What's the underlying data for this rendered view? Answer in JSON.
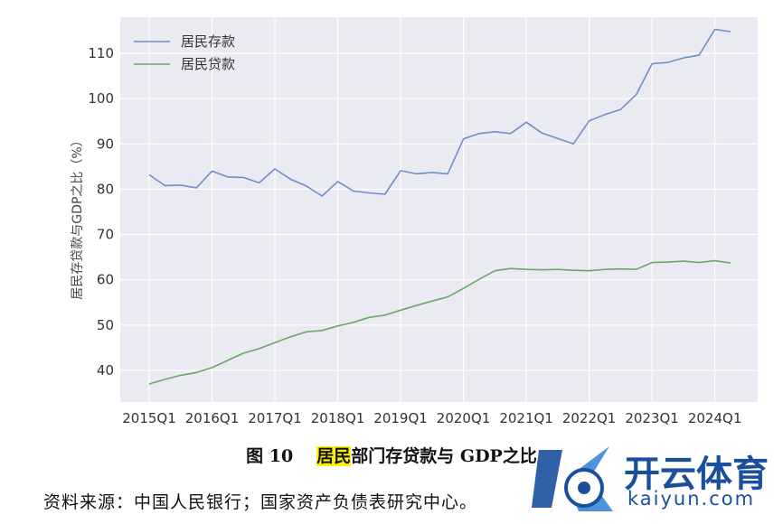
{
  "chart_data": {
    "type": "line",
    "ylabel": "居民存贷款与GDP之比（%）",
    "xlabel": "",
    "title": "",
    "ylim": [
      33,
      118
    ],
    "yticks": [
      40,
      50,
      60,
      70,
      80,
      90,
      100,
      110
    ],
    "grid": true,
    "legend_position": "top-left",
    "x_tick_labels": [
      "2015Q1",
      "2016Q1",
      "2017Q1",
      "2018Q1",
      "2019Q1",
      "2020Q1",
      "2021Q1",
      "2022Q1",
      "2023Q1",
      "2024Q1"
    ],
    "x": [
      "2015Q1",
      "2015Q2",
      "2015Q3",
      "2015Q4",
      "2016Q1",
      "2016Q2",
      "2016Q3",
      "2016Q4",
      "2017Q1",
      "2017Q2",
      "2017Q3",
      "2017Q4",
      "2018Q1",
      "2018Q2",
      "2018Q3",
      "2018Q4",
      "2019Q1",
      "2019Q2",
      "2019Q3",
      "2019Q4",
      "2020Q1",
      "2020Q2",
      "2020Q3",
      "2020Q4",
      "2021Q1",
      "2021Q2",
      "2021Q3",
      "2021Q4",
      "2022Q1",
      "2022Q2",
      "2022Q3",
      "2022Q4",
      "2023Q1",
      "2023Q2",
      "2023Q3",
      "2023Q4",
      "2024Q1",
      "2024Q2"
    ],
    "series": [
      {
        "name": "居民存款",
        "color": "#6f8fc9",
        "values": [
          83.2,
          80.8,
          80.9,
          80.3,
          84.0,
          82.7,
          82.6,
          81.4,
          84.5,
          82.2,
          80.7,
          78.5,
          81.7,
          79.6,
          79.2,
          78.9,
          84.1,
          83.4,
          83.7,
          83.4,
          91.1,
          92.3,
          92.7,
          92.3,
          94.8,
          92.4,
          91.2,
          90.0,
          95.1,
          96.5,
          97.6,
          100.9,
          107.7,
          108.0,
          109.0,
          109.6,
          115.3,
          114.8
        ]
      },
      {
        "name": "居民贷款",
        "color": "#6aa86a",
        "values": [
          37.0,
          38.0,
          38.9,
          39.5,
          40.6,
          42.2,
          43.8,
          44.8,
          46.1,
          47.4,
          48.5,
          48.8,
          49.8,
          50.6,
          51.7,
          52.2,
          53.3,
          54.3,
          55.3,
          56.2,
          58.1,
          60.1,
          62.0,
          62.5,
          62.3,
          62.2,
          62.3,
          62.1,
          62.0,
          62.3,
          62.4,
          62.3,
          63.8,
          63.9,
          64.1,
          63.8,
          64.2,
          63.7
        ]
      }
    ]
  },
  "caption": {
    "number": "图 10",
    "highlight": "居民",
    "rest": "部门存贷款与 GDP之比"
  },
  "source": "资料来源：中国人民银行；国家资产负债表研究中心。",
  "watermark": {
    "name": "开云体育",
    "url": "kaiyun.com",
    "brand_color": "#1a4f9c"
  }
}
